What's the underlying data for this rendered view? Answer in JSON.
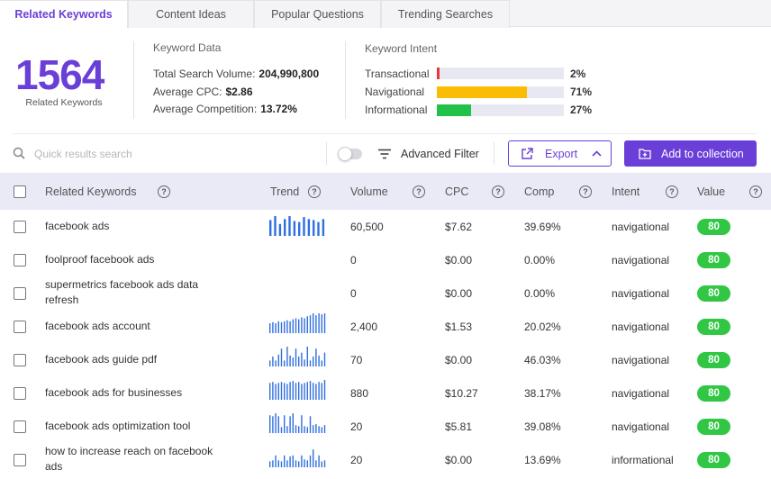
{
  "tabs": [
    {
      "label": "Related Keywords",
      "active": true
    },
    {
      "label": "Content Ideas",
      "active": false
    },
    {
      "label": "Popular Questions",
      "active": false
    },
    {
      "label": "Trending Searches",
      "active": false
    }
  ],
  "summary": {
    "count": "1564",
    "count_label": "Related Keywords",
    "keyword_data": {
      "title": "Keyword Data",
      "rows": [
        {
          "label": "Total Search Volume:",
          "value": "204,990,800"
        },
        {
          "label": "Average CPC:",
          "value": "$2.86"
        },
        {
          "label": "Average Competition:",
          "value": "13.72%"
        }
      ]
    },
    "keyword_intent": {
      "title": "Keyword Intent",
      "rows": [
        {
          "label": "Transactional",
          "pct": "2%",
          "fraction": 0.02,
          "color": "#e53935"
        },
        {
          "label": "Navigational",
          "pct": "71%",
          "fraction": 0.71,
          "color": "#fbbc05"
        },
        {
          "label": "Informational",
          "pct": "27%",
          "fraction": 0.27,
          "color": "#22c14a"
        }
      ]
    }
  },
  "toolbar": {
    "search_placeholder": "Quick results search",
    "advanced_filter_label": "Advanced Filter",
    "export_label": "Export",
    "add_collection_label": "Add to collection"
  },
  "table": {
    "headers": {
      "keyword": "Related Keywords",
      "trend": "Trend",
      "volume": "Volume",
      "cpc": "CPC",
      "comp": "Comp",
      "intent": "Intent",
      "value": "Value"
    },
    "help_glyph": "?",
    "rows": [
      {
        "keyword": "facebook ads",
        "volume": "60,500",
        "cpc": "$7.62",
        "comp": "39.69%",
        "intent": "navigational",
        "value": "80",
        "trend": [
          0.8,
          1,
          0.6,
          0.85,
          1,
          0.75,
          0.7,
          0.95,
          0.85,
          0.8,
          0.7,
          0.85
        ]
      },
      {
        "keyword": "foolproof facebook ads",
        "volume": "0",
        "cpc": "$0.00",
        "comp": "0.00%",
        "intent": "navigational",
        "value": "80",
        "trend": []
      },
      {
        "keyword": "supermetrics facebook ads data refresh",
        "volume": "0",
        "cpc": "$0.00",
        "comp": "0.00%",
        "intent": "navigational",
        "value": "80",
        "trend": []
      },
      {
        "keyword": "facebook ads account",
        "volume": "2,400",
        "cpc": "$1.53",
        "comp": "20.02%",
        "intent": "navigational",
        "value": "80",
        "trend": [
          0.5,
          0.55,
          0.5,
          0.6,
          0.55,
          0.6,
          0.65,
          0.6,
          0.7,
          0.75,
          0.7,
          0.8,
          0.75,
          0.85,
          0.9,
          1,
          0.9,
          1,
          0.95,
          1
        ]
      },
      {
        "keyword": "facebook ads guide pdf",
        "volume": "70",
        "cpc": "$0.00",
        "comp": "46.03%",
        "intent": "navigational",
        "value": "80",
        "trend": [
          0.3,
          0.5,
          0.3,
          0.6,
          0.9,
          0.3,
          1,
          0.55,
          0.45,
          0.9,
          0.5,
          0.7,
          0.35,
          1,
          0.3,
          0.5,
          0.9,
          0.55,
          0.3,
          0.7
        ]
      },
      {
        "keyword": "facebook ads for businesses",
        "volume": "880",
        "cpc": "$10.27",
        "comp": "38.17%",
        "intent": "navigational",
        "value": "80",
        "trend": [
          0.85,
          0.9,
          0.8,
          0.85,
          0.9,
          0.85,
          0.8,
          0.9,
          0.95,
          0.85,
          0.9,
          0.8,
          0.85,
          0.9,
          0.95,
          0.85,
          0.8,
          0.9,
          0.85,
          1
        ]
      },
      {
        "keyword": "facebook ads optimization tool",
        "volume": "20",
        "cpc": "$5.81",
        "comp": "39.08%",
        "intent": "navigational",
        "value": "80",
        "trend": [
          0.9,
          0.85,
          1,
          0.85,
          0.3,
          0.9,
          0.35,
          0.85,
          1,
          0.4,
          0.35,
          0.9,
          0.35,
          0.3,
          0.85,
          0.4,
          0.45,
          0.35,
          0.3,
          0.4
        ]
      },
      {
        "keyword": "how to increase reach on facebook ads",
        "volume": "20",
        "cpc": "$0.00",
        "comp": "13.69%",
        "intent": "informational",
        "value": "80",
        "trend": [
          0.3,
          0.35,
          0.6,
          0.35,
          0.3,
          0.6,
          0.35,
          0.55,
          0.6,
          0.35,
          0.3,
          0.6,
          0.4,
          0.35,
          0.6,
          0.9,
          0.35,
          0.6,
          0.3,
          0.35
        ]
      }
    ]
  },
  "colors": {
    "accent": "#6a3fd8",
    "trend_bar": "#2f6fe0",
    "value_badge": "#31c744"
  }
}
